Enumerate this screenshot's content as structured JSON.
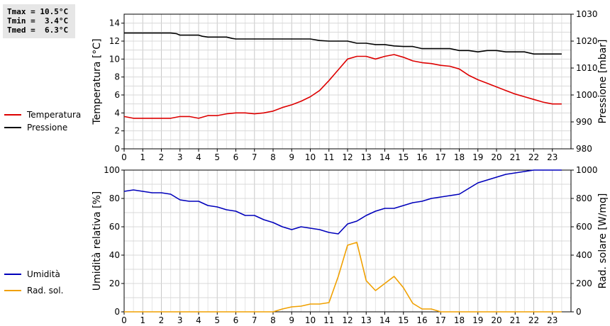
{
  "stats": {
    "tmax_label": "Tmax =",
    "tmax_value": "10.5°C",
    "tmin_label": "Tmin =",
    "tmin_value": "3.4°C",
    "tmed_label": "Tmed =",
    "tmed_value": "6.3°C"
  },
  "chart_data": [
    {
      "type": "line",
      "x_ticks": [
        0,
        1,
        2,
        3,
        4,
        5,
        6,
        7,
        8,
        9,
        10,
        11,
        12,
        13,
        14,
        15,
        16,
        17,
        18,
        19,
        20,
        21,
        22,
        23
      ],
      "xlim": [
        0,
        24
      ],
      "grid": true,
      "legend_position": "left",
      "y_left": {
        "label": "Temperatura [°C]",
        "lim": [
          0,
          15
        ],
        "ticks": [
          0,
          2,
          4,
          6,
          8,
          10,
          12,
          14
        ]
      },
      "y_right": {
        "label": "Pressione [mbar]",
        "lim": [
          980,
          1030
        ],
        "ticks": [
          980,
          990,
          1000,
          1010,
          1020,
          1030
        ]
      },
      "series": [
        {
          "name": "Temperatura",
          "axis": "left",
          "color": "#dd0000",
          "x": [
            0,
            0.5,
            1,
            1.5,
            2,
            2.5,
            3,
            3.5,
            4,
            4.5,
            5,
            5.5,
            6,
            6.5,
            7,
            7.5,
            8,
            8.5,
            9,
            9.5,
            10,
            10.5,
            11,
            11.5,
            12,
            12.5,
            13,
            13.5,
            14,
            14.5,
            15,
            15.5,
            16,
            16.5,
            17,
            17.5,
            18,
            18.5,
            19,
            19.5,
            20,
            20.5,
            21,
            21.5,
            22,
            22.5,
            23,
            23.5
          ],
          "y": [
            3.6,
            3.4,
            3.4,
            3.4,
            3.4,
            3.4,
            3.6,
            3.6,
            3.4,
            3.7,
            3.7,
            3.9,
            4.0,
            4.0,
            3.9,
            4.0,
            4.2,
            4.6,
            4.9,
            5.3,
            5.8,
            6.5,
            7.6,
            8.8,
            10.0,
            10.3,
            10.3,
            10.0,
            10.3,
            10.5,
            10.2,
            9.8,
            9.6,
            9.5,
            9.3,
            9.2,
            8.9,
            8.2,
            7.7,
            7.3,
            6.9,
            6.5,
            6.1,
            5.8,
            5.5,
            5.2,
            5.0,
            5.0
          ]
        },
        {
          "name": "Pressione",
          "axis": "right",
          "color": "#000000",
          "x": [
            0,
            0.5,
            1,
            1.5,
            2,
            2.5,
            2.8,
            3,
            3.5,
            4,
            4.2,
            4.5,
            5,
            5.5,
            5.8,
            6,
            6.5,
            7,
            7.5,
            8,
            8.5,
            9,
            9.5,
            10,
            10.5,
            11,
            11.5,
            12,
            12.5,
            13,
            13.5,
            14,
            14.5,
            15,
            15.5,
            16,
            16.5,
            17,
            17.5,
            18,
            18.5,
            19,
            19.5,
            20,
            20.5,
            21,
            21.5,
            22,
            22.5,
            23,
            23.5
          ],
          "y": [
            1023,
            1023,
            1023,
            1023,
            1023,
            1023,
            1022.8,
            1022.2,
            1022.2,
            1022.2,
            1021.8,
            1021.5,
            1021.5,
            1021.5,
            1021,
            1020.8,
            1020.8,
            1020.8,
            1020.8,
            1020.8,
            1020.8,
            1020.8,
            1020.8,
            1020.8,
            1020.2,
            1020,
            1020,
            1020,
            1019.2,
            1019.2,
            1018.7,
            1018.7,
            1018.2,
            1018,
            1018,
            1017.2,
            1017.2,
            1017.2,
            1017.2,
            1016.5,
            1016.5,
            1016,
            1016.5,
            1016.5,
            1016,
            1016,
            1016,
            1015.2,
            1015.2,
            1015.2,
            1015.2
          ]
        }
      ]
    },
    {
      "type": "line",
      "x_ticks": [
        0,
        1,
        2,
        3,
        4,
        5,
        6,
        7,
        8,
        9,
        10,
        11,
        12,
        13,
        14,
        15,
        16,
        17,
        18,
        19,
        20,
        21,
        22,
        23
      ],
      "xlim": [
        0,
        24
      ],
      "grid": true,
      "legend_position": "left",
      "y_left": {
        "label": "Umidità relativa [%]",
        "lim": [
          0,
          100
        ],
        "ticks": [
          0,
          20,
          40,
          60,
          80,
          100
        ]
      },
      "y_right": {
        "label": "Rad. solare [W/mq]",
        "lim": [
          0,
          1000
        ],
        "ticks": [
          0,
          200,
          400,
          600,
          800,
          1000
        ]
      },
      "series": [
        {
          "name": "Umidità",
          "axis": "left",
          "color": "#0000bb",
          "x": [
            0,
            0.5,
            1,
            1.5,
            2,
            2.5,
            3,
            3.5,
            4,
            4.5,
            5,
            5.5,
            6,
            6.5,
            7,
            7.5,
            8,
            8.5,
            9,
            9.5,
            10,
            10.5,
            11,
            11.5,
            12,
            12.5,
            13,
            13.5,
            14,
            14.5,
            15,
            15.5,
            16,
            16.5,
            17,
            17.5,
            18,
            18.5,
            19,
            19.5,
            20,
            20.5,
            21,
            21.5,
            22,
            22.5,
            23,
            23.5
          ],
          "y": [
            85,
            86,
            85,
            84,
            84,
            83,
            79,
            78,
            78,
            75,
            74,
            72,
            71,
            68,
            68,
            65,
            63,
            60,
            58,
            60,
            59,
            58,
            56,
            55,
            62,
            64,
            68,
            71,
            73,
            73,
            75,
            77,
            78,
            80,
            81,
            82,
            83,
            87,
            91,
            93,
            95,
            97,
            98,
            99,
            100,
            100,
            100,
            100
          ]
        },
        {
          "name": "Rad. sol.",
          "axis": "right",
          "color": "#f0a000",
          "x": [
            0,
            0.5,
            1,
            1.5,
            2,
            2.5,
            3,
            3.5,
            4,
            4.5,
            5,
            5.5,
            6,
            6.5,
            7,
            7.5,
            8,
            8.5,
            9,
            9.5,
            10,
            10.5,
            11,
            11.5,
            12,
            12.5,
            13,
            13.5,
            14,
            14.5,
            15,
            15.5,
            16,
            16.5,
            17,
            17.5,
            18,
            18.5,
            19,
            19.5,
            20,
            20.5,
            21,
            21.5,
            22,
            22.5,
            23,
            23.5
          ],
          "y": [
            0,
            0,
            0,
            0,
            0,
            0,
            0,
            0,
            0,
            0,
            0,
            0,
            0,
            0,
            0,
            0,
            0,
            20,
            35,
            40,
            55,
            55,
            65,
            250,
            470,
            490,
            220,
            150,
            200,
            250,
            170,
            60,
            20,
            20,
            0,
            0,
            0,
            0,
            0,
            0,
            0,
            0,
            0,
            0,
            0,
            0,
            0,
            0
          ]
        }
      ]
    }
  ]
}
